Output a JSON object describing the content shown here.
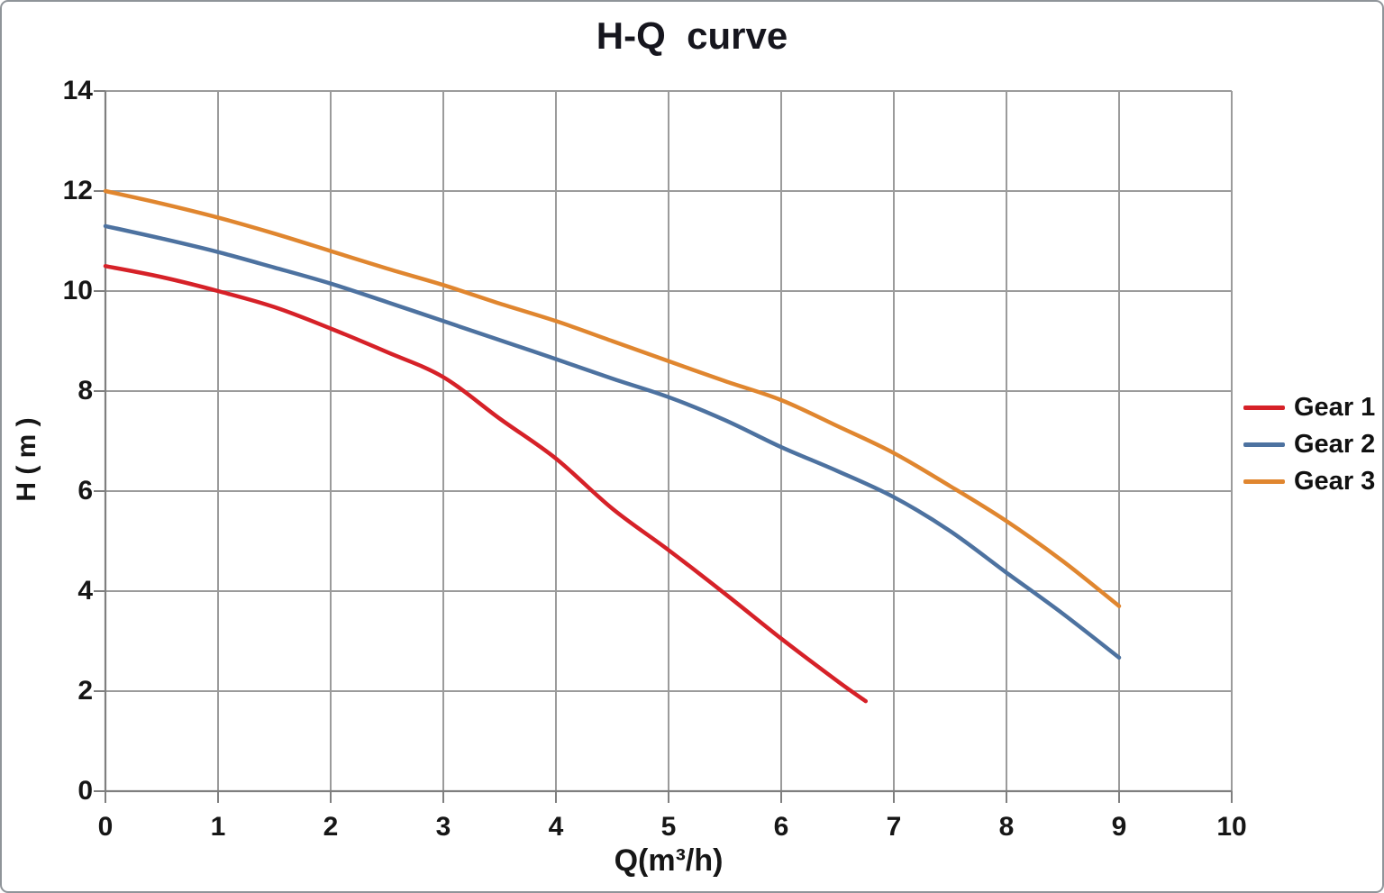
{
  "frame": {
    "background": "#ffffff",
    "border_color": "#8f9499"
  },
  "chart_data": {
    "type": "line",
    "title": "H-Q  curve",
    "xlabel": "Q(m³/h)",
    "ylabel": "H ( m )",
    "xlim": [
      0,
      10
    ],
    "ylim": [
      0,
      14
    ],
    "x_ticks": [
      0,
      1,
      2,
      3,
      4,
      5,
      6,
      7,
      8,
      9,
      10
    ],
    "y_ticks": [
      0,
      2,
      4,
      6,
      8,
      10,
      12,
      14
    ],
    "grid": true,
    "legend_position": "right",
    "colors": {
      "grid": "#9b9b9b",
      "axis": "#7f7f7f",
      "text": "#161616",
      "title": "#16161e"
    },
    "series": [
      {
        "name": "Gear 1",
        "color": "#d62128",
        "points": [
          [
            0,
            10.5
          ],
          [
            0.5,
            10.28
          ],
          [
            1,
            10.0
          ],
          [
            1.5,
            9.68
          ],
          [
            2,
            9.25
          ],
          [
            2.5,
            8.78
          ],
          [
            3,
            8.28
          ],
          [
            3.5,
            7.45
          ],
          [
            4,
            6.65
          ],
          [
            4.5,
            5.65
          ],
          [
            5,
            4.82
          ],
          [
            5.5,
            3.95
          ],
          [
            6,
            3.05
          ],
          [
            6.5,
            2.2
          ],
          [
            6.75,
            1.8
          ]
        ]
      },
      {
        "name": "Gear 2",
        "color": "#4d72a0",
        "points": [
          [
            0,
            11.3
          ],
          [
            0.5,
            11.05
          ],
          [
            1,
            10.78
          ],
          [
            1.5,
            10.47
          ],
          [
            2,
            10.15
          ],
          [
            2.5,
            9.78
          ],
          [
            3,
            9.4
          ],
          [
            3.5,
            9.02
          ],
          [
            4,
            8.64
          ],
          [
            4.5,
            8.25
          ],
          [
            5,
            7.88
          ],
          [
            5.5,
            7.42
          ],
          [
            6,
            6.88
          ],
          [
            6.5,
            6.4
          ],
          [
            7,
            5.88
          ],
          [
            7.5,
            5.2
          ],
          [
            8,
            4.37
          ],
          [
            8.5,
            3.55
          ],
          [
            9,
            2.67
          ]
        ]
      },
      {
        "name": "Gear 3",
        "color": "#e0862f",
        "points": [
          [
            0,
            12.0
          ],
          [
            0.5,
            11.75
          ],
          [
            1,
            11.47
          ],
          [
            1.5,
            11.15
          ],
          [
            2,
            10.8
          ],
          [
            2.5,
            10.45
          ],
          [
            3,
            10.12
          ],
          [
            3.5,
            9.75
          ],
          [
            4,
            9.4
          ],
          [
            4.5,
            9.0
          ],
          [
            5,
            8.6
          ],
          [
            5.5,
            8.2
          ],
          [
            6,
            7.82
          ],
          [
            6.5,
            7.3
          ],
          [
            7,
            6.76
          ],
          [
            7.5,
            6.1
          ],
          [
            8,
            5.4
          ],
          [
            8.5,
            4.6
          ],
          [
            9,
            3.7
          ]
        ]
      }
    ]
  }
}
